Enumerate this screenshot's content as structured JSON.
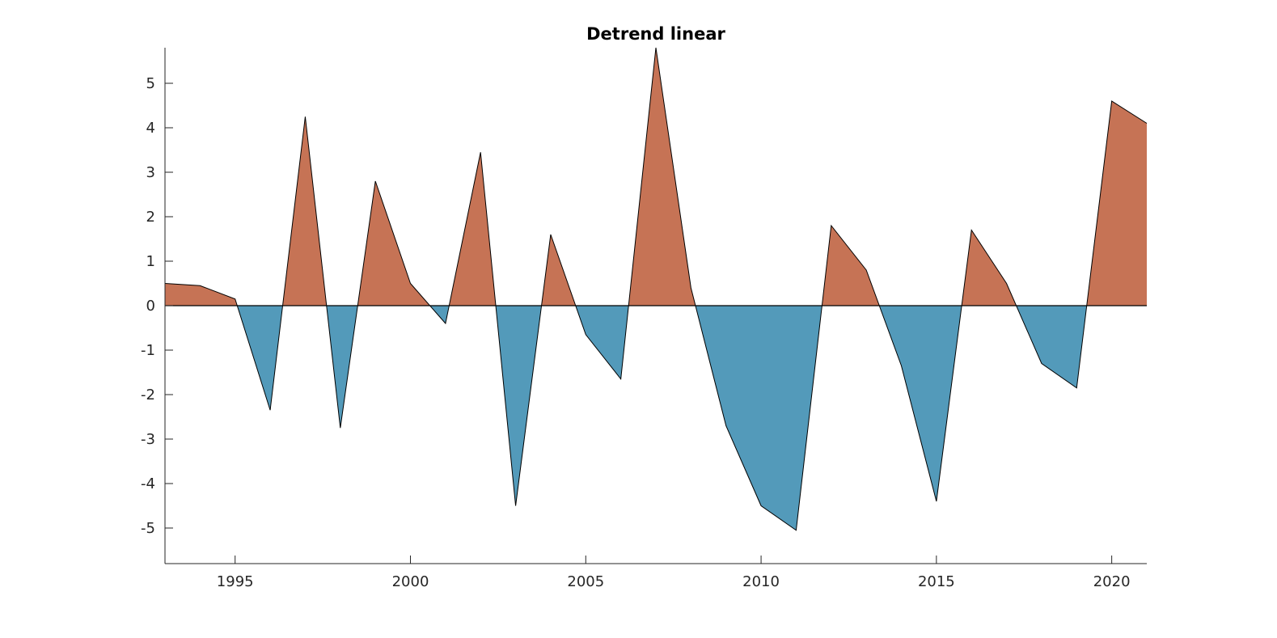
{
  "chart_data": {
    "type": "area",
    "title": "Detrend linear",
    "xlabel": "",
    "ylabel": "",
    "xlim": [
      1993,
      2021
    ],
    "ylim": [
      -5.8,
      5.8
    ],
    "xticks": [
      1995,
      2000,
      2005,
      2010,
      2015,
      2020
    ],
    "yticks": [
      -5,
      -4,
      -3,
      -2,
      -1,
      0,
      1,
      2,
      3,
      4,
      5
    ],
    "grid": false,
    "legend": "none",
    "colors": {
      "positive": "#c67355",
      "negative": "#539aba",
      "outline": "#000000"
    },
    "x": [
      1993,
      1994,
      1995,
      1996,
      1997,
      1998,
      1999,
      2000,
      2001,
      2002,
      2003,
      2004,
      2005,
      2006,
      2007,
      2008,
      2009,
      2010,
      2011,
      2012,
      2013,
      2014,
      2015,
      2016,
      2017,
      2018,
      2019,
      2020,
      2021
    ],
    "values": [
      0.5,
      0.45,
      0.15,
      -2.35,
      4.25,
      -2.75,
      2.8,
      0.5,
      -0.4,
      3.45,
      -4.5,
      1.6,
      -0.65,
      -1.65,
      5.8,
      0.4,
      -2.7,
      -4.5,
      -5.05,
      1.8,
      0.8,
      -1.35,
      -4.4,
      1.7,
      0.5,
      -1.3,
      -1.85,
      4.6,
      4.1
    ]
  }
}
